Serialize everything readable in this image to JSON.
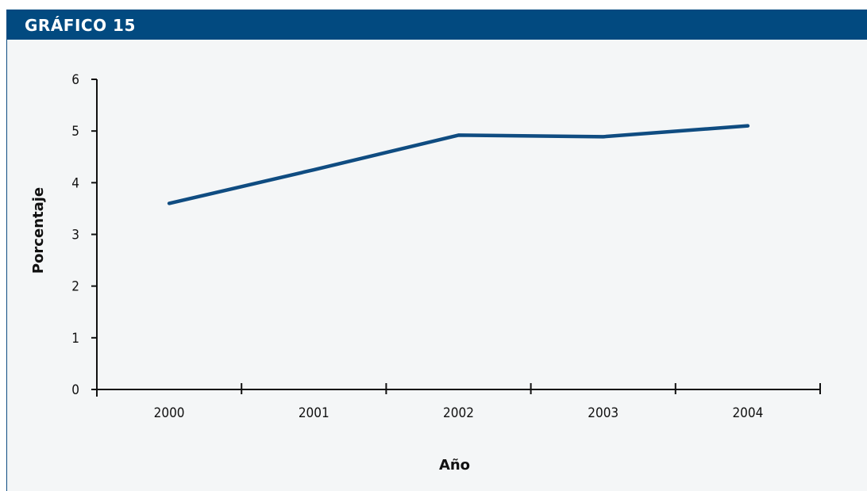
{
  "header": {
    "title": "GRÁFICO 15"
  },
  "colors": {
    "header_bg": "#024a80",
    "line": "#0f4c81",
    "plot_bg": "#f4f6f7"
  },
  "chart_data": {
    "type": "line",
    "categories": [
      "2000",
      "2001",
      "2002",
      "2003",
      "2004"
    ],
    "series": [
      {
        "values": [
          3.6,
          4.25,
          4.92,
          4.89,
          5.1
        ]
      }
    ],
    "xlabel": "Año",
    "ylabel": "Porcentaje",
    "ylim": [
      0,
      6
    ],
    "yticks": [
      "0",
      "1",
      "2",
      "3",
      "4",
      "5",
      "6"
    ],
    "grid": false,
    "legend": "none"
  }
}
